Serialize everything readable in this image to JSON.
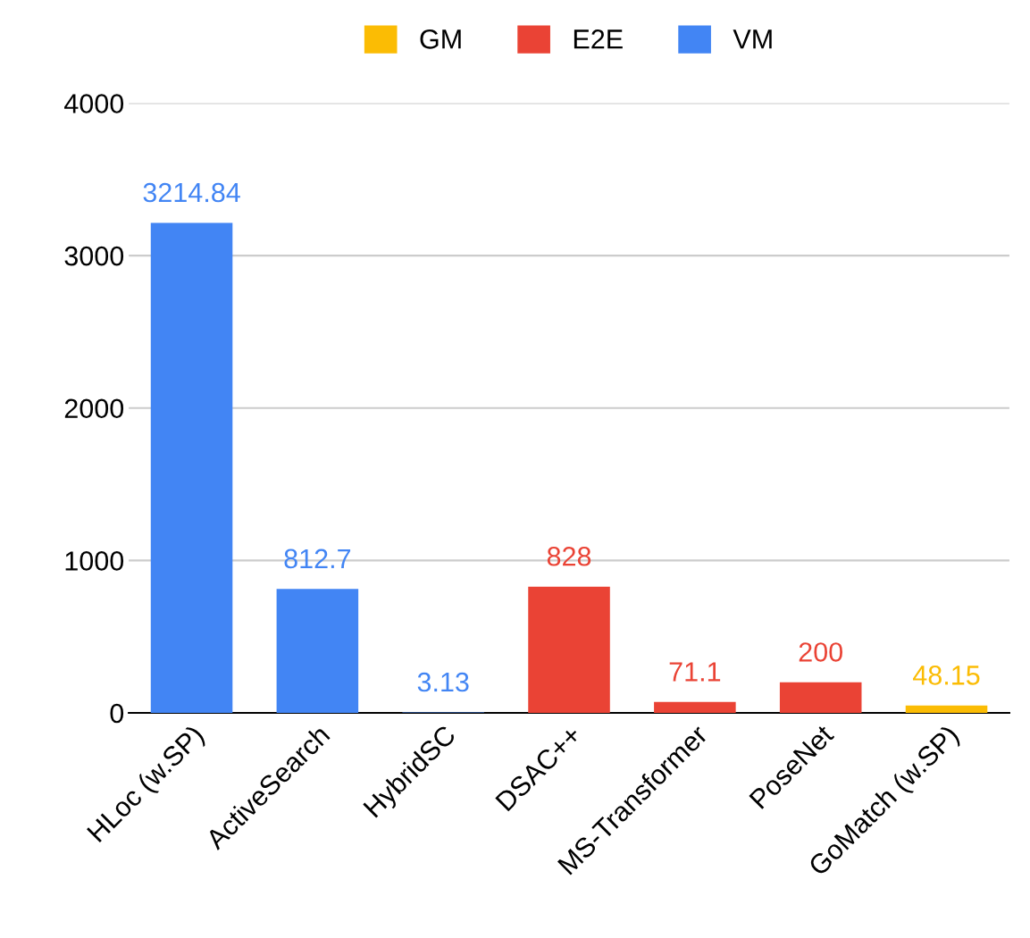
{
  "chart_data": {
    "type": "bar",
    "categories": [
      "HLoc (w.SP)",
      "ActiveSearch",
      "HybridSC",
      "DSAC++",
      "MS-Transformer",
      "PoseNet",
      "GoMatch (w.SP)"
    ],
    "series": [
      {
        "name": "GM",
        "color": "#fbbc04",
        "values": [
          null,
          null,
          null,
          null,
          null,
          null,
          48.15
        ]
      },
      {
        "name": "E2E",
        "color": "#ea4335",
        "values": [
          null,
          null,
          null,
          828,
          71.1,
          200,
          null
        ]
      },
      {
        "name": "VM",
        "color": "#4285f4",
        "values": [
          3214.84,
          812.7,
          3.13,
          null,
          null,
          null,
          null
        ]
      }
    ],
    "ylim": [
      0,
      4000
    ],
    "yticks": [
      0,
      1000,
      2000,
      3000,
      4000
    ],
    "grid": "y",
    "legend": "top",
    "data_labels": true
  }
}
